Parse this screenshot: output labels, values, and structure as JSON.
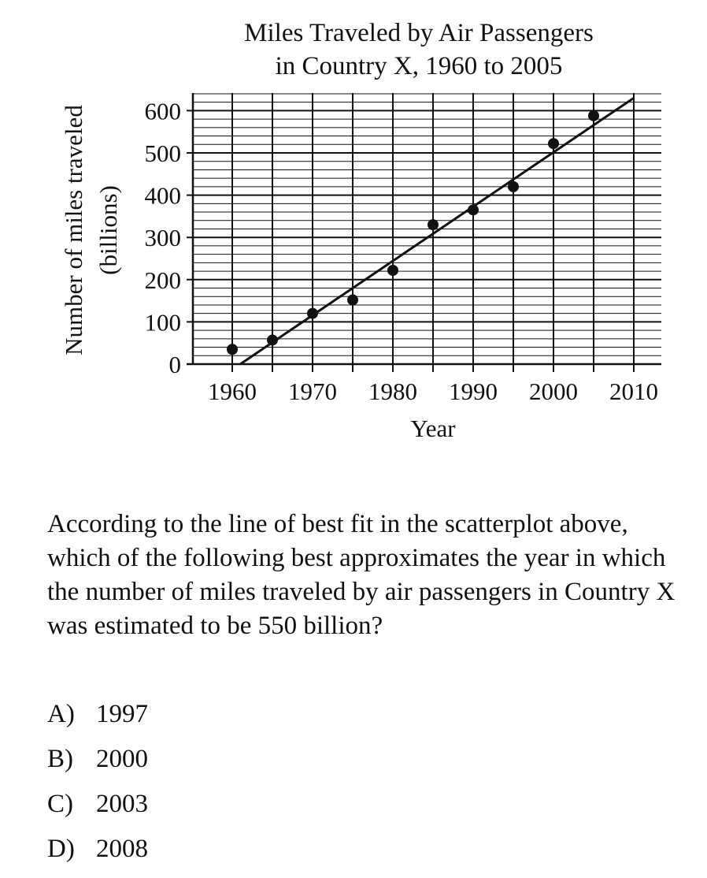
{
  "chart_data": {
    "type": "scatter",
    "title": [
      "Miles Traveled by Air Passengers",
      "in Country X, 1960 to 2005"
    ],
    "xlabel": "Year",
    "ylabel": [
      "Number of miles traveled",
      "(billions)"
    ],
    "xlim": [
      1955,
      2013
    ],
    "ylim": [
      0,
      650
    ],
    "x_ticks": [
      1960,
      1970,
      1980,
      1990,
      2000,
      2010
    ],
    "y_ticks": [
      0,
      100,
      200,
      300,
      400,
      500,
      600
    ],
    "grid": true,
    "points": [
      {
        "x": 1960,
        "y": 35
      },
      {
        "x": 1965,
        "y": 57
      },
      {
        "x": 1970,
        "y": 120
      },
      {
        "x": 1975,
        "y": 152
      },
      {
        "x": 1980,
        "y": 222
      },
      {
        "x": 1985,
        "y": 330
      },
      {
        "x": 1990,
        "y": 365
      },
      {
        "x": 1995,
        "y": 420
      },
      {
        "x": 2000,
        "y": 522
      },
      {
        "x": 2005,
        "y": 588
      }
    ],
    "best_fit_line": {
      "x": [
        1961,
        2010
      ],
      "y": [
        0,
        630
      ]
    }
  },
  "question": {
    "text": "According to the line of best fit in the scatterplot above, which of the following best approximates the year in which the number of miles traveled by air passengers in Country X was estimated to be 550 billion?",
    "choices": [
      {
        "letter": "A)",
        "value": "1997"
      },
      {
        "letter": "B)",
        "value": "2000"
      },
      {
        "letter": "C)",
        "value": "2003"
      },
      {
        "letter": "D)",
        "value": "2008"
      }
    ]
  }
}
